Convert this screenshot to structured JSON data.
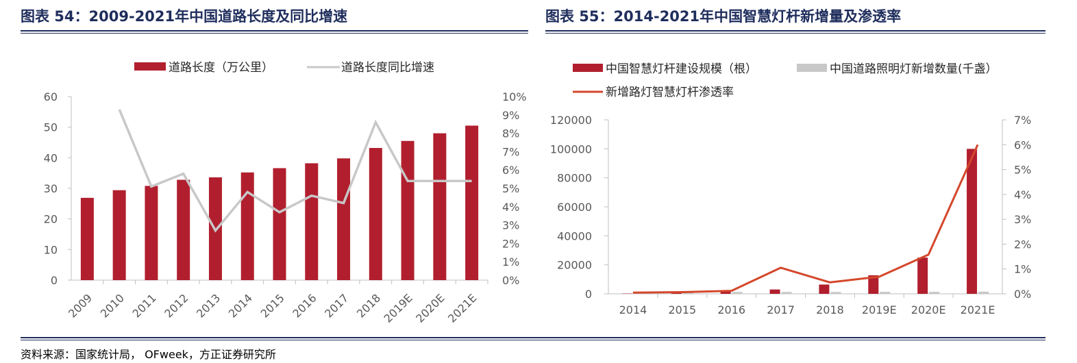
{
  "figures": {
    "left_title": "图表 54：2009-2021年中国道路长度及同比增速",
    "right_title": "图表 55：2014-2021年中国智慧灯杆新增量及渗透率"
  },
  "source_text": "资料来源：国家统计局， OFweek，方正证券研究所",
  "colors": {
    "bar_red": "#b11f2e",
    "line_gray": "#c8c8c8",
    "bar_gray": "#c8c8c8",
    "line_orange": "#d4472b",
    "title_navy": "#1f2d5c"
  },
  "chart_data": [
    {
      "type": "bar",
      "title": "",
      "categories": [
        "2009",
        "2010",
        "2011",
        "2012",
        "2013",
        "2014",
        "2015",
        "2016",
        "2017",
        "2018",
        "2019E",
        "2020E",
        "2021E"
      ],
      "series": [
        {
          "name": "道路长度（万公里）",
          "type": "bar",
          "axis": "left",
          "values": [
            26.9,
            29.4,
            30.8,
            32.8,
            33.6,
            35.2,
            36.6,
            38.2,
            39.8,
            43.2,
            45.5,
            48.0,
            50.5
          ]
        },
        {
          "name": "道路长度同比增速",
          "type": "line",
          "axis": "right",
          "values": [
            null,
            9.3,
            5.1,
            5.8,
            2.7,
            4.8,
            3.7,
            4.6,
            4.2,
            8.6,
            5.4,
            5.4,
            5.4
          ]
        }
      ],
      "left_axis": {
        "min": 0,
        "max": 60,
        "ticks": [
          "0",
          "10",
          "20",
          "30",
          "40",
          "50",
          "60"
        ]
      },
      "right_axis": {
        "min": 0,
        "max": 10,
        "ticks": [
          "0%",
          "1%",
          "2%",
          "3%",
          "4%",
          "5%",
          "6%",
          "7%",
          "8%",
          "9%",
          "10%"
        ]
      },
      "legend_position": "top-center",
      "grid": false
    },
    {
      "type": "bar",
      "title": "",
      "categories": [
        "2014",
        "2015",
        "2016",
        "2017",
        "2018",
        "2019E",
        "2020E",
        "2021E"
      ],
      "series": [
        {
          "name": "中国智慧灯杆建设规模（根）",
          "type": "bar",
          "axis": "left",
          "values": [
            200,
            800,
            2000,
            3000,
            6400,
            12800,
            25000,
            100000
          ]
        },
        {
          "name": "中国道路照明灯新增数量(千盏）",
          "type": "bar",
          "axis": "left",
          "values": [
            1200,
            1200,
            1300,
            1300,
            1300,
            1400,
            1400,
            1500
          ]
        },
        {
          "name": "新增路灯智慧灯杆渗透率",
          "type": "line",
          "axis": "right",
          "values": [
            0.05,
            0.07,
            0.12,
            1.05,
            0.46,
            0.69,
            1.58,
            6.0
          ]
        }
      ],
      "left_axis": {
        "min": 0,
        "max": 120000,
        "ticks": [
          "0",
          "20000",
          "40000",
          "60000",
          "80000",
          "100000",
          "120000"
        ]
      },
      "right_axis": {
        "min": 0,
        "max": 7,
        "ticks": [
          "0%",
          "1%",
          "2%",
          "3%",
          "4%",
          "5%",
          "6%",
          "7%"
        ]
      },
      "legend_position": "top-left",
      "grid": false
    }
  ]
}
